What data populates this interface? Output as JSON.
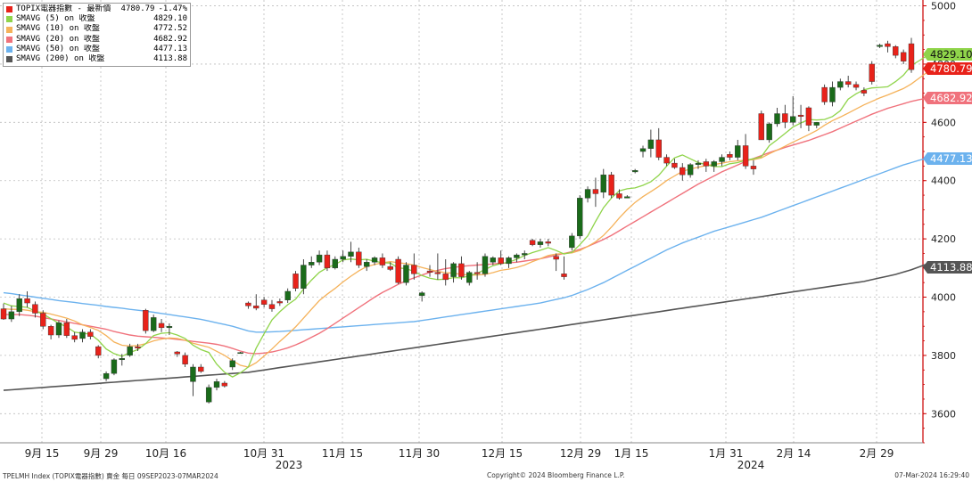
{
  "chart_data": {
    "type": "candlestick",
    "title": "TOPIX電器指數",
    "y_ticks": [
      3600,
      3800,
      4000,
      4200,
      4400,
      4600,
      4800,
      5000
    ],
    "ylim": [
      3500,
      5020
    ],
    "grid": true,
    "x_ticks": [
      "9月 15",
      "9月 29",
      "10月 16",
      "10月 31",
      "11月 15",
      "11月 30",
      "12月 15",
      "12月 29",
      "1月 15",
      "1月 31",
      "2月 14",
      "2月 29"
    ],
    "year_labels": [
      "2023",
      "2024"
    ],
    "legend": [
      {
        "name": "TOPIX電器指數 - 最新價",
        "value": "4780.79",
        "change": "-1.47%",
        "color": "#e8221a"
      },
      {
        "name": "SMAVG (5)  on 收盤",
        "value": "4829.10",
        "color": "#8fd44a"
      },
      {
        "name": "SMAVG (10)  on 收盤",
        "value": "4772.52",
        "color": "#f5b25a"
      },
      {
        "name": "SMAVG (20)  on 收盤",
        "value": "4682.92",
        "color": "#f0727c"
      },
      {
        "name": "SMAVG (50)  on 收盤",
        "value": "4477.13",
        "color": "#6cb2ee"
      },
      {
        "name": "SMAVG (200)  on 收盤",
        "value": "4113.88",
        "color": "#555555"
      }
    ],
    "axis_tags": [
      {
        "text": "4829.10",
        "value": 4829.1,
        "color": "#8fd44a"
      },
      {
        "text": "4780.79",
        "value": 4780.79,
        "color": "#e8221a"
      },
      {
        "text": "4682.92",
        "value": 4682.92,
        "color": "#f0727c"
      },
      {
        "text": "4477.13",
        "value": 4477.13,
        "color": "#6cb2ee"
      },
      {
        "text": "4113.88",
        "value": 4113.88,
        "color": "#555555"
      }
    ],
    "candles": [
      [
        3960,
        3978,
        3922,
        3925
      ],
      [
        3925,
        3970,
        3915,
        3950
      ],
      [
        3950,
        4010,
        3935,
        3995
      ],
      [
        3995,
        4020,
        3965,
        3980
      ],
      [
        3975,
        3985,
        3930,
        3945
      ],
      [
        3945,
        3955,
        3890,
        3900
      ],
      [
        3900,
        3905,
        3855,
        3870
      ],
      [
        3870,
        3920,
        3860,
        3912
      ],
      [
        3912,
        3925,
        3860,
        3868
      ],
      [
        3868,
        3880,
        3845,
        3855
      ],
      [
        3858,
        3890,
        3845,
        3880
      ],
      [
        3880,
        3890,
        3855,
        3865
      ],
      [
        3830,
        3835,
        3790,
        3800
      ],
      [
        3720,
        3745,
        3712,
        3738
      ],
      [
        3738,
        3790,
        3732,
        3785
      ],
      [
        3785,
        3805,
        3765,
        3790
      ],
      [
        3800,
        3840,
        3795,
        3830
      ],
      [
        3830,
        3840,
        3815,
        3825
      ],
      [
        3955,
        3960,
        3875,
        3885
      ],
      [
        3885,
        3940,
        3880,
        3930
      ],
      [
        3910,
        3925,
        3880,
        3895
      ],
      [
        3895,
        3910,
        3870,
        3900
      ],
      [
        3812,
        3815,
        3795,
        3805
      ],
      [
        3800,
        3810,
        3760,
        3770
      ],
      [
        3710,
        3770,
        3660,
        3760
      ],
      [
        3760,
        3770,
        3740,
        3745
      ],
      [
        3640,
        3700,
        3635,
        3690
      ],
      [
        3690,
        3720,
        3680,
        3710
      ],
      [
        3705,
        3712,
        3690,
        3695
      ],
      [
        3760,
        3790,
        3750,
        3782
      ],
      [
        3810,
        3812,
        3808,
        3810
      ],
      [
        3980,
        3985,
        3960,
        3970
      ],
      [
        3970,
        4010,
        3955,
        3962
      ],
      [
        3990,
        4000,
        3965,
        3975
      ],
      [
        3975,
        3990,
        3950,
        3960
      ],
      [
        3985,
        3995,
        3970,
        3980
      ],
      [
        3990,
        4030,
        3980,
        4020
      ],
      [
        4080,
        4090,
        4020,
        4030
      ],
      [
        4030,
        4130,
        4010,
        4110
      ],
      [
        4110,
        4140,
        4100,
        4120
      ],
      [
        4120,
        4160,
        4110,
        4145
      ],
      [
        4145,
        4160,
        4090,
        4100
      ],
      [
        4100,
        4140,
        4095,
        4130
      ],
      [
        4130,
        4160,
        4120,
        4140
      ],
      [
        4140,
        4190,
        4120,
        4155
      ],
      [
        4155,
        4170,
        4100,
        4110
      ],
      [
        4105,
        4130,
        4090,
        4120
      ],
      [
        4120,
        4140,
        4110,
        4135
      ],
      [
        4135,
        4150,
        4100,
        4110
      ],
      [
        4105,
        4120,
        4090,
        4095
      ],
      [
        4130,
        4140,
        4045,
        4050
      ],
      [
        4050,
        4120,
        4040,
        4110
      ],
      [
        4110,
        4150,
        4060,
        4080
      ],
      [
        4005,
        4020,
        3985,
        4015
      ],
      [
        4090,
        4110,
        4070,
        4085
      ],
      [
        4085,
        4150,
        4060,
        4080
      ],
      [
        4080,
        4130,
        4040,
        4060
      ],
      [
        4070,
        4120,
        4050,
        4115
      ],
      [
        4115,
        4140,
        4060,
        4070
      ],
      [
        4050,
        4090,
        4040,
        4085
      ],
      [
        4085,
        4120,
        4060,
        4080
      ],
      [
        4080,
        4150,
        4070,
        4140
      ],
      [
        4120,
        4140,
        4110,
        4135
      ],
      [
        4135,
        4160,
        4110,
        4115
      ],
      [
        4115,
        4140,
        4100,
        4135
      ],
      [
        4135,
        4150,
        4120,
        4145
      ],
      [
        4145,
        4160,
        4130,
        4150
      ],
      [
        4195,
        4200,
        4175,
        4180
      ],
      [
        4180,
        4200,
        4170,
        4190
      ],
      [
        4190,
        4200,
        4175,
        4185
      ],
      [
        4140,
        4150,
        4090,
        4130
      ],
      [
        4080,
        4140,
        4060,
        4070
      ],
      [
        4170,
        4220,
        4160,
        4210
      ],
      [
        4210,
        4350,
        4200,
        4340
      ],
      [
        4340,
        4380,
        4325,
        4370
      ],
      [
        4370,
        4410,
        4310,
        4355
      ],
      [
        4360,
        4440,
        4340,
        4420
      ],
      [
        4420,
        4430,
        4340,
        4350
      ],
      [
        4355,
        4370,
        4335,
        4340
      ],
      [
        4340,
        4350,
        4340,
        4345
      ],
      [
        4430,
        4440,
        4425,
        4435
      ],
      [
        4500,
        4520,
        4480,
        4510
      ],
      [
        4510,
        4575,
        4480,
        4540
      ],
      [
        4540,
        4580,
        4470,
        4480
      ],
      [
        4480,
        4490,
        4450,
        4460
      ],
      [
        4460,
        4475,
        4440,
        4445
      ],
      [
        4445,
        4460,
        4400,
        4420
      ],
      [
        4420,
        4460,
        4410,
        4455
      ],
      [
        4455,
        4470,
        4440,
        4460
      ],
      [
        4465,
        4475,
        4430,
        4450
      ],
      [
        4450,
        4470,
        4430,
        4465
      ],
      [
        4465,
        4490,
        4450,
        4480
      ],
      [
        4490,
        4500,
        4470,
        4480
      ],
      [
        4480,
        4540,
        4470,
        4520
      ],
      [
        4520,
        4560,
        4440,
        4450
      ],
      [
        4450,
        4470,
        4420,
        4440
      ],
      [
        4630,
        4640,
        4540,
        4540
      ],
      [
        4540,
        4600,
        4530,
        4595
      ],
      [
        4595,
        4650,
        4585,
        4630
      ],
      [
        4630,
        4660,
        4580,
        4600
      ],
      [
        4600,
        4690,
        4590,
        4620
      ],
      [
        4625,
        4660,
        4580,
        4620
      ],
      [
        4650,
        4655,
        4570,
        4590
      ],
      [
        4590,
        4600,
        4580,
        4600
      ],
      [
        4720,
        4730,
        4660,
        4670
      ],
      [
        4670,
        4740,
        4655,
        4720
      ],
      [
        4720,
        4750,
        4710,
        4740
      ],
      [
        4740,
        4760,
        4720,
        4730
      ],
      [
        4730,
        4740,
        4710,
        4720
      ],
      [
        4710,
        4720,
        4690,
        4700
      ],
      [
        4800,
        4810,
        4730,
        4740
      ],
      [
        4860,
        4870,
        4855,
        4865
      ],
      [
        4870,
        4880,
        4840,
        4860
      ],
      [
        4860,
        4865,
        4820,
        4830
      ],
      [
        4840,
        4850,
        4800,
        4810
      ],
      [
        4870,
        4890,
        4770,
        4781
      ]
    ],
    "ma5": [
      3980,
      3970,
      3968,
      3965,
      3952,
      3942,
      3926,
      3910,
      3898,
      3880,
      3876,
      3873,
      3852,
      3822,
      3806,
      3797,
      3810,
      3820,
      3840,
      3868,
      3876,
      3878,
      3870,
      3858,
      3835,
      3820,
      3810,
      3770,
      3742,
      3726,
      3740,
      3760,
      3825,
      3874,
      3922,
      3950,
      3974,
      3993,
      4028,
      4058,
      4085,
      4101,
      4112,
      4128,
      4131,
      4128,
      4130,
      4123,
      4118,
      4117,
      4100,
      4098,
      4088,
      4074,
      4065,
      4060,
      4062,
      4067,
      4066,
      4073,
      4082,
      4095,
      4108,
      4115,
      4120,
      4130,
      4143,
      4153,
      4161,
      4170,
      4160,
      4148,
      4154,
      4180,
      4210,
      4260,
      4307,
      4340,
      4365,
      4372,
      4375,
      4384,
      4396,
      4418,
      4450,
      4478,
      4488,
      4475,
      4462,
      4455,
      4448,
      4448,
      4458,
      4462,
      4470,
      4475,
      4482,
      4520,
      4540,
      4562,
      4584,
      4598,
      4610,
      4608,
      4610,
      4620,
      4640,
      4680,
      4698,
      4712,
      4718,
      4720,
      4722,
      4740,
      4762,
      4795,
      4812,
      4829
    ],
    "ma10": [
      3960,
      3958,
      3958,
      3955,
      3950,
      3948,
      3942,
      3935,
      3928,
      3918,
      3905,
      3896,
      3886,
      3868,
      3846,
      3835,
      3832,
      3834,
      3840,
      3850,
      3856,
      3860,
      3858,
      3852,
      3842,
      3835,
      3828,
      3814,
      3800,
      3782,
      3766,
      3760,
      3775,
      3798,
      3822,
      3848,
      3872,
      3898,
      3928,
      3958,
      3988,
      4010,
      4030,
      4052,
      4072,
      4090,
      4105,
      4112,
      4118,
      4122,
      4118,
      4115,
      4110,
      4102,
      4095,
      4088,
      4084,
      4082,
      4078,
      4076,
      4076,
      4078,
      4084,
      4092,
      4096,
      4102,
      4110,
      4122,
      4132,
      4143,
      4148,
      4150,
      4152,
      4160,
      4174,
      4190,
      4212,
      4240,
      4272,
      4300,
      4325,
      4345,
      4362,
      4380,
      4400,
      4416,
      4432,
      4440,
      4446,
      4452,
      4455,
      4460,
      4465,
      4468,
      4470,
      4472,
      4478,
      4492,
      4505,
      4518,
      4532,
      4545,
      4558,
      4572,
      4590,
      4606,
      4618,
      4632,
      4646,
      4660,
      4672,
      4684,
      4694,
      4705,
      4716,
      4732,
      4752,
      4772
    ],
    "ma20": [
      3940,
      3940,
      3940,
      3938,
      3935,
      3930,
      3925,
      3920,
      3915,
      3910,
      3905,
      3900,
      3895,
      3890,
      3882,
      3876,
      3870,
      3866,
      3864,
      3862,
      3860,
      3858,
      3855,
      3852,
      3848,
      3845,
      3842,
      3838,
      3832,
      3824,
      3815,
      3808,
      3806,
      3808,
      3812,
      3818,
      3826,
      3836,
      3848,
      3862,
      3876,
      3892,
      3910,
      3928,
      3946,
      3964,
      3982,
      4000,
      4016,
      4030,
      4044,
      4056,
      4066,
      4076,
      4085,
      4092,
      4098,
      4102,
      4106,
      4108,
      4110,
      4112,
      4114,
      4116,
      4118,
      4120,
      4124,
      4128,
      4132,
      4138,
      4144,
      4150,
      4156,
      4164,
      4174,
      4186,
      4198,
      4212,
      4228,
      4244,
      4260,
      4276,
      4292,
      4308,
      4324,
      4340,
      4356,
      4372,
      4388,
      4402,
      4416,
      4430,
      4442,
      4454,
      4466,
      4476,
      4486,
      4496,
      4505,
      4514,
      4522,
      4530,
      4538,
      4548,
      4558,
      4568,
      4580,
      4592,
      4604,
      4616,
      4628,
      4638,
      4648,
      4656,
      4664,
      4672,
      4678,
      4683
    ],
    "ma50": [
      4015,
      4012,
      4008,
      4004,
      4000,
      3996,
      3992,
      3988,
      3985,
      3982,
      3978,
      3975,
      3972,
      3968,
      3965,
      3962,
      3958,
      3955,
      3952,
      3948,
      3944,
      3940,
      3936,
      3932,
      3928,
      3924,
      3918,
      3912,
      3906,
      3900,
      3892,
      3884,
      3880,
      3880,
      3881,
      3882,
      3884,
      3886,
      3888,
      3890,
      3892,
      3894,
      3896,
      3898,
      3900,
      3902,
      3904,
      3906,
      3908,
      3910,
      3912,
      3914,
      3916,
      3920,
      3924,
      3928,
      3932,
      3936,
      3940,
      3944,
      3948,
      3952,
      3956,
      3960,
      3964,
      3968,
      3972,
      3976,
      3980,
      3986,
      3992,
      3998,
      4006,
      4016,
      4026,
      4038,
      4050,
      4064,
      4078,
      4092,
      4106,
      4120,
      4134,
      4148,
      4162,
      4174,
      4186,
      4196,
      4206,
      4216,
      4226,
      4234,
      4242,
      4250,
      4258,
      4266,
      4274,
      4284,
      4294,
      4304,
      4314,
      4324,
      4334,
      4344,
      4354,
      4364,
      4374,
      4384,
      4394,
      4404,
      4414,
      4424,
      4434,
      4444,
      4454,
      4462,
      4470,
      4477
    ],
    "ma200": [
      3680,
      3682,
      3684,
      3686,
      3688,
      3690,
      3692,
      3694,
      3696,
      3698,
      3700,
      3702,
      3704,
      3706,
      3708,
      3710,
      3712,
      3714,
      3716,
      3718,
      3720,
      3722,
      3724,
      3726,
      3728,
      3730,
      3732,
      3734,
      3736,
      3738,
      3740,
      3742,
      3746,
      3750,
      3754,
      3758,
      3762,
      3766,
      3770,
      3774,
      3778,
      3782,
      3786,
      3790,
      3794,
      3798,
      3802,
      3806,
      3810,
      3814,
      3818,
      3822,
      3826,
      3830,
      3834,
      3838,
      3842,
      3846,
      3850,
      3854,
      3858,
      3862,
      3866,
      3870,
      3874,
      3878,
      3882,
      3886,
      3890,
      3894,
      3898,
      3902,
      3906,
      3910,
      3914,
      3918,
      3922,
      3926,
      3930,
      3934,
      3938,
      3942,
      3946,
      3950,
      3954,
      3958,
      3962,
      3966,
      3970,
      3974,
      3978,
      3982,
      3986,
      3990,
      3994,
      3998,
      4002,
      4006,
      4010,
      4014,
      4018,
      4022,
      4026,
      4030,
      4034,
      4038,
      4042,
      4046,
      4050,
      4054,
      4060,
      4066,
      4072,
      4078,
      4086,
      4094,
      4104,
      4114
    ]
  },
  "footer": {
    "left": "TPELMH Index (TOPIX電器指數) 賣金  每日 09SEP2023-07MAR2024",
    "center": "Copyright© 2024 Bloomberg Finance L.P.",
    "right": "07-Mar-2024 16:29:40"
  }
}
